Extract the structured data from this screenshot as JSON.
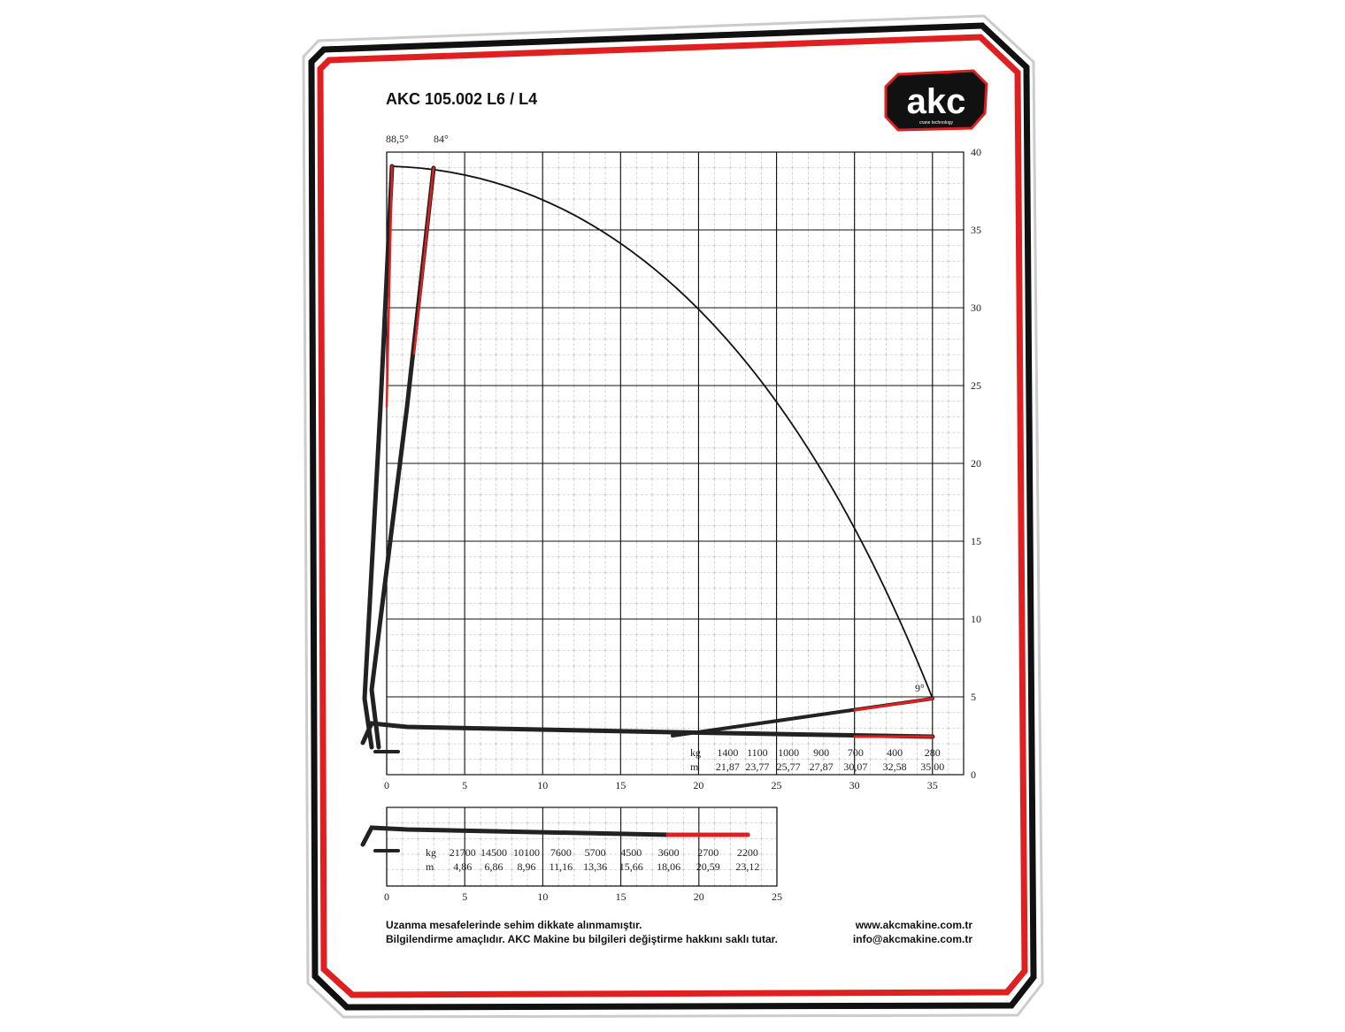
{
  "header": {
    "title": "AKC 105.002 L6 / L4",
    "logo": "akc",
    "logo_tagline": "crane technology"
  },
  "main_chart": {
    "angle_labels": [
      "88,5°",
      "84°"
    ],
    "end_angle_label": "9°",
    "xlim": [
      0,
      37
    ],
    "ylim": [
      0,
      40
    ],
    "xticks": [
      0,
      5,
      10,
      15,
      20,
      25,
      30,
      35
    ],
    "yticks": [
      0,
      5,
      10,
      15,
      20,
      25,
      30,
      35,
      40
    ],
    "load_table": {
      "kg_label": "kg",
      "m_label": "m",
      "kg": [
        1400,
        1100,
        1000,
        900,
        700,
        400,
        280
      ],
      "m": [
        {
          "value": 21.87,
          "label": "21,87"
        },
        {
          "value": 23.77,
          "label": "23,77"
        },
        {
          "value": 25.77,
          "label": "25,77"
        },
        {
          "value": 27.87,
          "label": "27,87"
        },
        {
          "value": 30.07,
          "label": "30,07"
        },
        {
          "value": 32.58,
          "label": "32,58"
        },
        {
          "value": 35,
          "label": "35,00"
        }
      ]
    }
  },
  "ext_chart": {
    "xlim": [
      0,
      25
    ],
    "xticks": [
      0,
      5,
      10,
      15,
      20,
      25
    ],
    "load_table": {
      "kg_label": "kg",
      "m_label": "m",
      "kg": [
        21700,
        14500,
        10100,
        7600,
        5700,
        4500,
        3600,
        2700,
        2200
      ],
      "m": [
        {
          "value": 4.86,
          "label": "4,86"
        },
        {
          "value": 6.86,
          "label": "6,86"
        },
        {
          "value": 8.96,
          "label": "8,96"
        },
        {
          "value": 11.16,
          "label": "11,16"
        },
        {
          "value": 13.36,
          "label": "13,36"
        },
        {
          "value": 15.66,
          "label": "15,66"
        },
        {
          "value": 18.06,
          "label": "18,06"
        },
        {
          "value": 20.59,
          "label": "20,59"
        },
        {
          "value": 23.12,
          "label": "23,12"
        }
      ]
    }
  },
  "footer": {
    "notes": [
      "Uzanma mesafelerinde sehim dikkate alınmamıştır.",
      "Bilgilendirme amaçlıdır. AKC Makine bu bilgileri değiştirme hakkını saklı tutar."
    ],
    "contacts": [
      "www.akcmakine.com.tr",
      "info@akcmakine.com.tr"
    ]
  }
}
